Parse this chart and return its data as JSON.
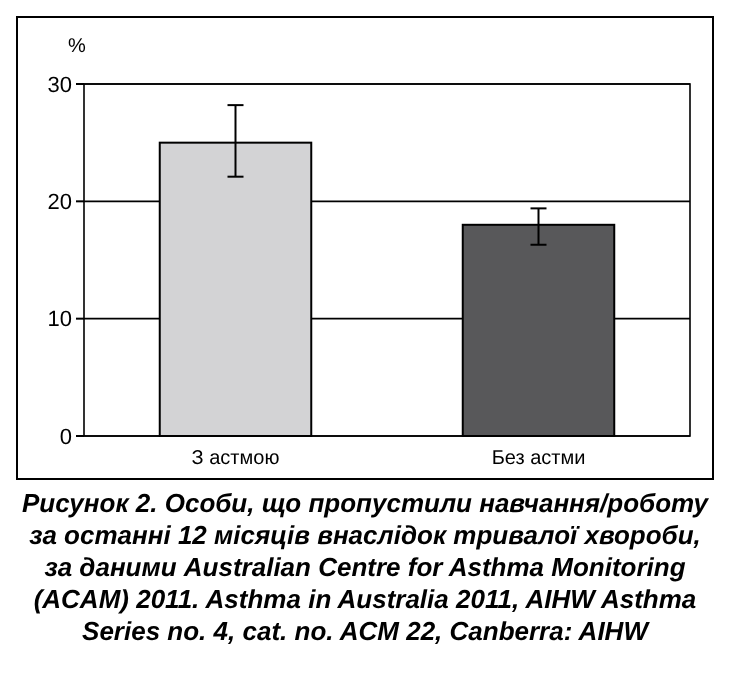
{
  "chart_data": {
    "type": "bar",
    "title": "Рисунок 2. Особи, що пропустили навчання/роботу за останні 12 місяців внаслідок тривалої хвороби, за даними Australian Centre for Asthma Monitoring (ACAM) 2011. Asthma in Australia 2011, AIHW Asthma Series no. 4, cat. no. ACM 22, Canberra: AIHW",
    "ylabel": "%",
    "categories": [
      "З астмою",
      "Без астми"
    ],
    "values": [
      25,
      18
    ],
    "errors": [
      [
        22.1,
        28.2
      ],
      [
        16.3,
        19.4
      ]
    ],
    "colors": [
      "#d3d3d5",
      "#58585a"
    ],
    "ylim": [
      0,
      30
    ],
    "yticks": [
      0,
      10,
      20,
      30
    ],
    "grid": "y"
  }
}
